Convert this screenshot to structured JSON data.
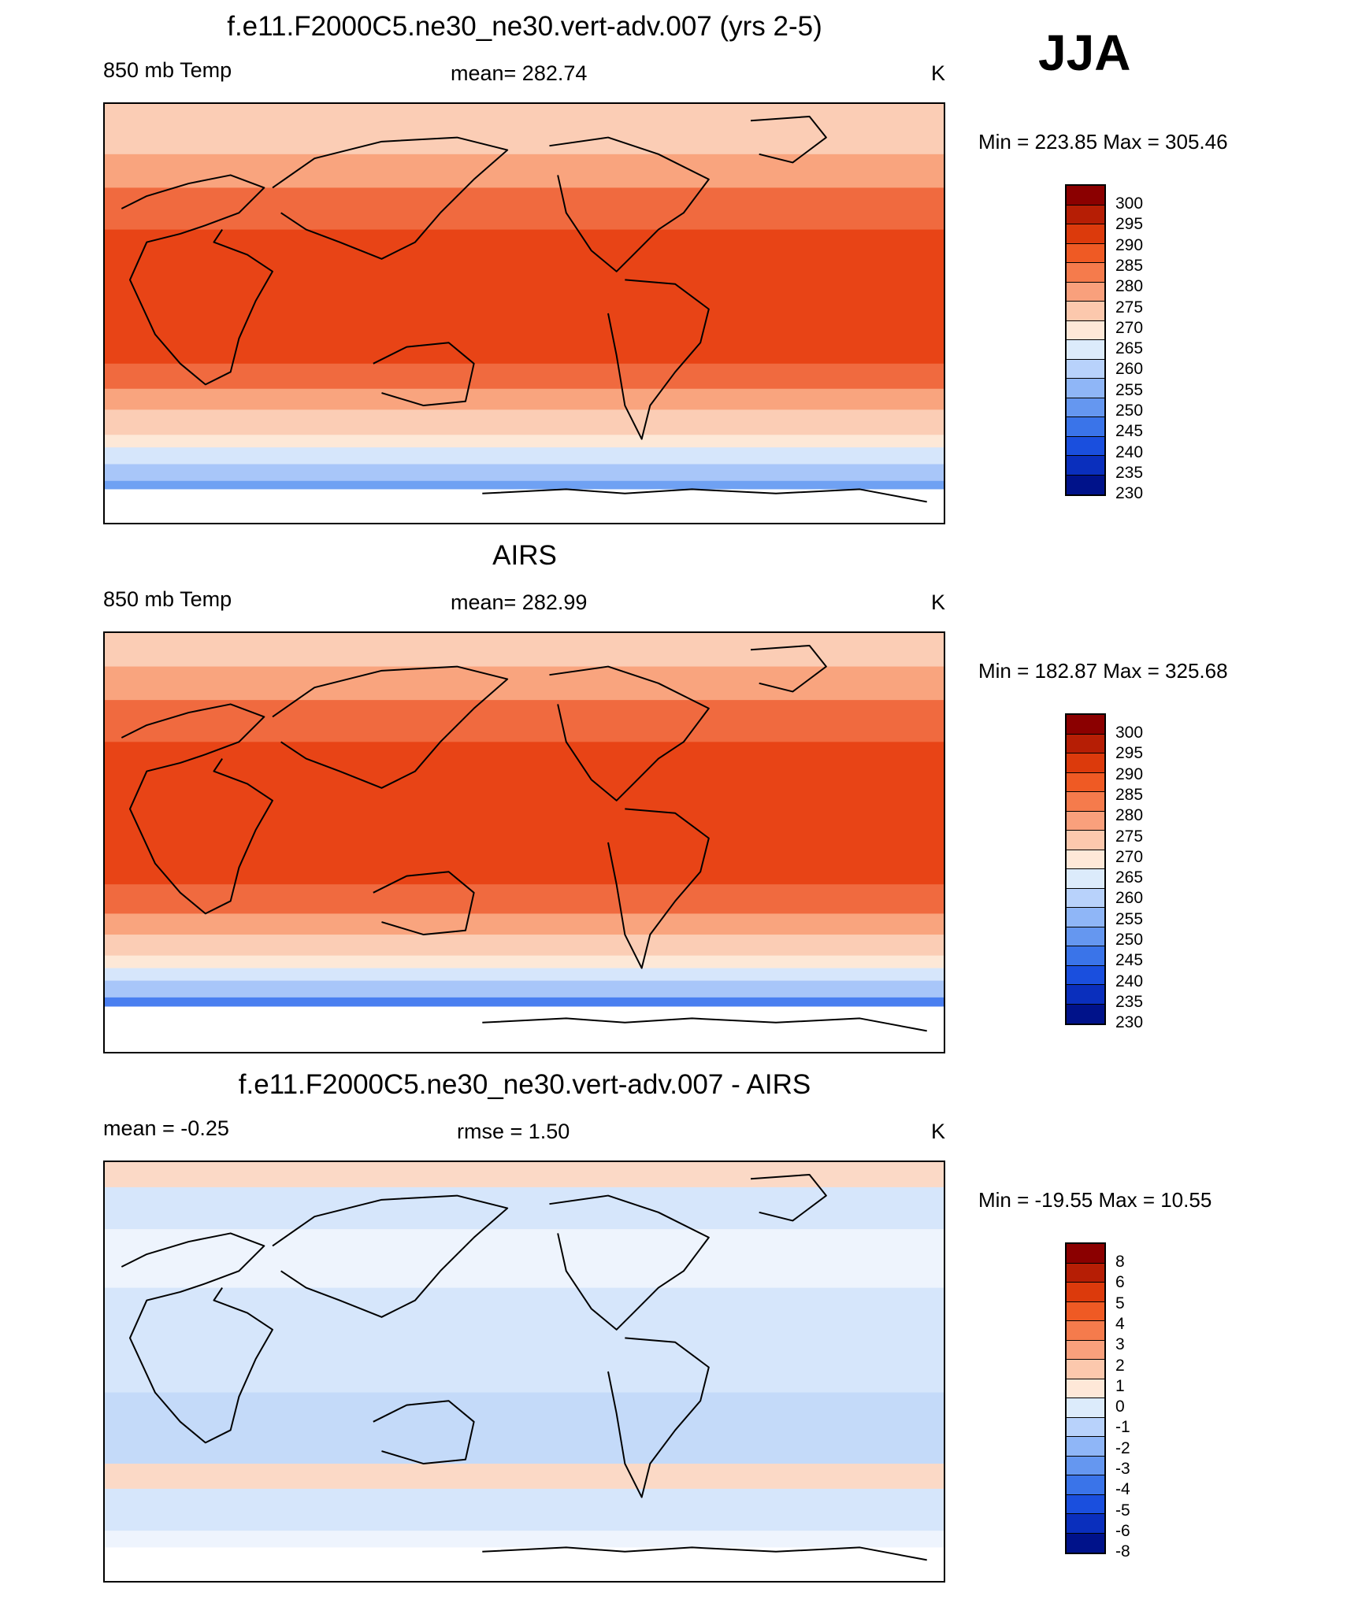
{
  "season": "JJA",
  "panels": [
    {
      "title": "f.e11.F2000C5.ne30_ne30.vert-adv.007 (yrs 2-5)",
      "left_label": "850 mb Temp",
      "center_label": "mean= 282.74",
      "right_label": "K",
      "minmax": "Min = 223.85 Max = 305.46",
      "bands": [
        {
          "color": "#fbcdb5",
          "top": 0.0,
          "bot": 0.12
        },
        {
          "color": "#f9a47e",
          "top": 0.12,
          "bot": 0.2
        },
        {
          "color": "#f06a3f",
          "top": 0.2,
          "bot": 0.3
        },
        {
          "color": "#e84416",
          "top": 0.3,
          "bot": 0.62
        },
        {
          "color": "#f06a3f",
          "top": 0.62,
          "bot": 0.68
        },
        {
          "color": "#f9a47e",
          "top": 0.68,
          "bot": 0.73
        },
        {
          "color": "#fbcdb5",
          "top": 0.73,
          "bot": 0.79
        },
        {
          "color": "#fde8d7",
          "top": 0.79,
          "bot": 0.82
        },
        {
          "color": "#d6e6fb",
          "top": 0.82,
          "bot": 0.86
        },
        {
          "color": "#a8c6f9",
          "top": 0.86,
          "bot": 0.9
        },
        {
          "color": "#6fa1f3",
          "top": 0.9,
          "bot": 0.92
        }
      ],
      "colorbar": {
        "colors": [
          "#8b0000",
          "#b61e05",
          "#dc3a0c",
          "#ef5a24",
          "#f57b4c",
          "#f9a07c",
          "#fcc8ad",
          "#fee8d8",
          "#dcebfb",
          "#b8d2fb",
          "#8fb6f7",
          "#6597f0",
          "#3a74e9",
          "#1a4fde",
          "#0a2fbd",
          "#00128a"
        ],
        "labels": [
          "300",
          "295",
          "290",
          "285",
          "280",
          "275",
          "270",
          "265",
          "260",
          "255",
          "250",
          "245",
          "240",
          "235",
          "230"
        ]
      }
    },
    {
      "title": "AIRS",
      "left_label": "850 mb Temp",
      "center_label": "mean= 282.99",
      "right_label": "K",
      "minmax": "Min = 182.87 Max = 325.68",
      "bands": [
        {
          "color": "#fbcdb5",
          "top": 0.0,
          "bot": 0.08
        },
        {
          "color": "#f9a47e",
          "top": 0.08,
          "bot": 0.16
        },
        {
          "color": "#f06a3f",
          "top": 0.16,
          "bot": 0.26
        },
        {
          "color": "#e84416",
          "top": 0.26,
          "bot": 0.6
        },
        {
          "color": "#f06a3f",
          "top": 0.6,
          "bot": 0.67
        },
        {
          "color": "#f9a47e",
          "top": 0.67,
          "bot": 0.72
        },
        {
          "color": "#fbcdb5",
          "top": 0.72,
          "bot": 0.77
        },
        {
          "color": "#fde8d7",
          "top": 0.77,
          "bot": 0.8
        },
        {
          "color": "#d6e6fb",
          "top": 0.8,
          "bot": 0.83
        },
        {
          "color": "#a8c6f9",
          "top": 0.83,
          "bot": 0.87
        },
        {
          "color": "#4a7ff0",
          "top": 0.87,
          "bot": 0.89
        }
      ],
      "colorbar": {
        "colors": [
          "#8b0000",
          "#b61e05",
          "#dc3a0c",
          "#ef5a24",
          "#f57b4c",
          "#f9a07c",
          "#fcc8ad",
          "#fee8d8",
          "#dcebfb",
          "#b8d2fb",
          "#8fb6f7",
          "#6597f0",
          "#3a74e9",
          "#1a4fde",
          "#0a2fbd",
          "#00128a"
        ],
        "labels": [
          "300",
          "295",
          "290",
          "285",
          "280",
          "275",
          "270",
          "265",
          "260",
          "255",
          "250",
          "245",
          "240",
          "235",
          "230"
        ]
      }
    },
    {
      "title": "f.e11.F2000C5.ne30_ne30.vert-adv.007 - AIRS",
      "left_label": "mean =  -0.25",
      "center_label": "rmse =   1.50",
      "right_label": "K",
      "minmax": "Min = -19.55 Max =  10.55",
      "bands": [
        {
          "color": "#fbd9c6",
          "top": 0.0,
          "bot": 0.06
        },
        {
          "color": "#d6e6fb",
          "top": 0.06,
          "bot": 0.16
        },
        {
          "color": "#eef4fd",
          "top": 0.16,
          "bot": 0.3
        },
        {
          "color": "#d6e6fb",
          "top": 0.3,
          "bot": 0.55
        },
        {
          "color": "#c4daf9",
          "top": 0.55,
          "bot": 0.72
        },
        {
          "color": "#fbd9c6",
          "top": 0.72,
          "bot": 0.78
        },
        {
          "color": "#d6e6fb",
          "top": 0.78,
          "bot": 0.88
        },
        {
          "color": "#eef4fd",
          "top": 0.88,
          "bot": 0.92
        }
      ],
      "colorbar": {
        "colors": [
          "#8b0000",
          "#b61e05",
          "#dc3a0c",
          "#ef5a24",
          "#f57b4c",
          "#f9a07c",
          "#fcc8ad",
          "#fee8d8",
          "#dcebfb",
          "#b8d2fb",
          "#8fb6f7",
          "#6597f0",
          "#3a74e9",
          "#1a4fde",
          "#0a2fbd",
          "#00128a"
        ],
        "labels": [
          "8",
          "6",
          "5",
          "4",
          "3",
          "2",
          "1",
          "0",
          "-1",
          "-2",
          "-3",
          "-4",
          "-5",
          "-6",
          "-8"
        ]
      }
    }
  ]
}
